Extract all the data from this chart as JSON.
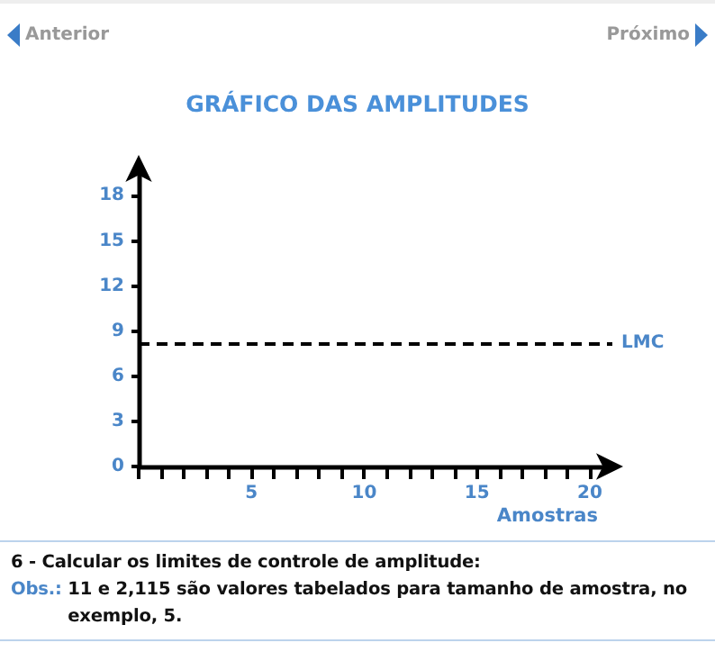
{
  "chart_data": {
    "type": "line",
    "title": "GRÁFICO DAS AMPLITUDES",
    "xlabel": "Amostras",
    "xlim": [
      0,
      21
    ],
    "xticks": [
      {
        "value": 0,
        "label": null
      },
      {
        "value": 1,
        "label": null
      },
      {
        "value": 2,
        "label": null
      },
      {
        "value": 3,
        "label": null
      },
      {
        "value": 4,
        "label": null
      },
      5,
      {
        "value": 6,
        "label": null
      },
      {
        "value": 7,
        "label": null
      },
      {
        "value": 8,
        "label": null
      },
      {
        "value": 9,
        "label": null
      },
      10,
      {
        "value": 11,
        "label": null
      },
      {
        "value": 12,
        "label": null
      },
      {
        "value": 13,
        "label": null
      },
      {
        "value": 14,
        "label": null
      },
      15,
      {
        "value": 16,
        "label": null
      },
      {
        "value": 17,
        "label": null
      },
      {
        "value": 18,
        "label": null
      },
      {
        "value": 19,
        "label": null
      },
      20
    ],
    "ylim": [
      0,
      20
    ],
    "yticks": [
      0,
      3,
      6,
      9,
      12,
      15,
      18
    ],
    "ref_lines": [
      {
        "axis": "y",
        "value": 8.2,
        "label": "LMC",
        "color": "#000000",
        "line_style": "dashed"
      }
    ],
    "grid": false,
    "annotations": [
      "Anterior",
      "Próximo",
      "6 - Calcular os limites de controle de amplitude:",
      "Obs.:",
      "11 e 2,115 são valores tabelados para tamanho de amostra, no exemplo, 5."
    ]
  }
}
